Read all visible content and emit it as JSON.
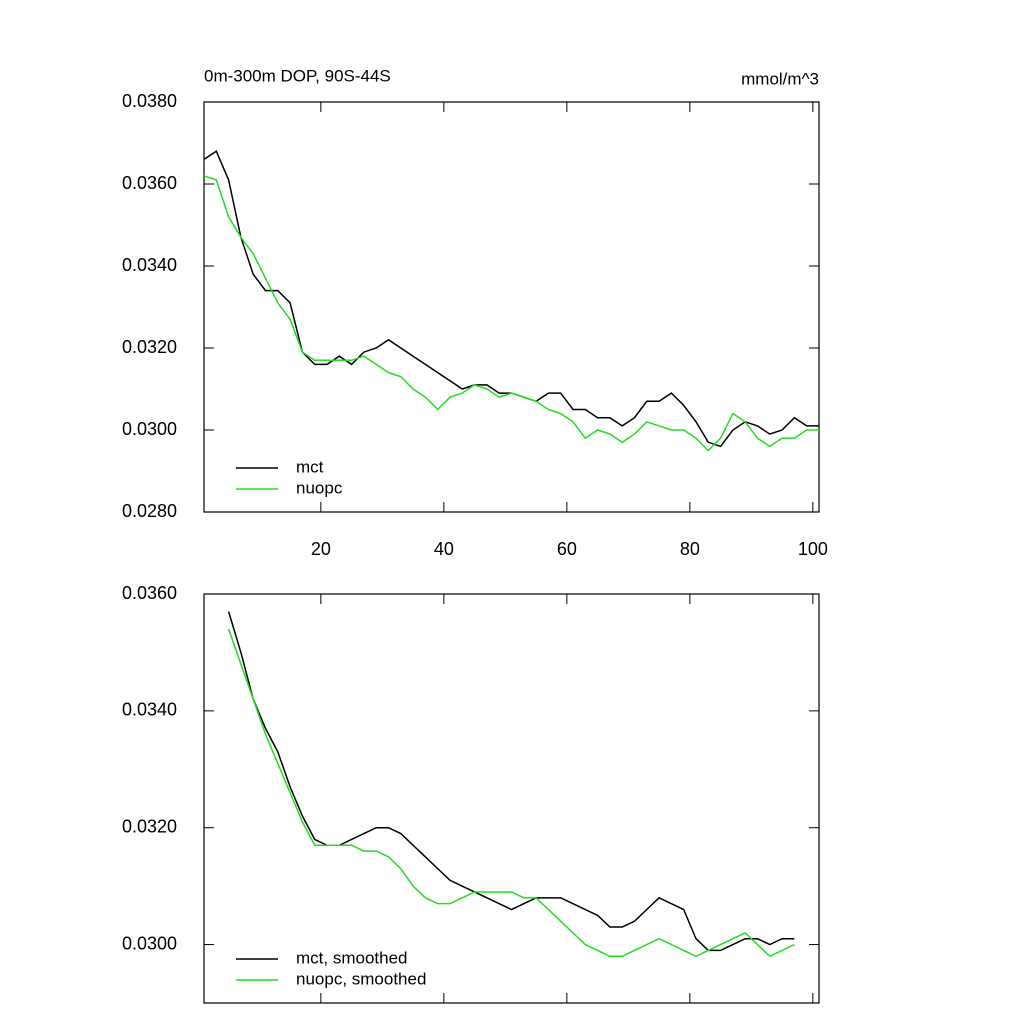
{
  "chart_data": [
    {
      "type": "line",
      "title": "0m-300m DOP, 90S-44S",
      "units": "mmol/m^3",
      "x": [
        1,
        3,
        5,
        7,
        9,
        11,
        13,
        15,
        17,
        19,
        21,
        23,
        25,
        27,
        29,
        31,
        33,
        35,
        37,
        39,
        41,
        43,
        45,
        47,
        49,
        51,
        53,
        55,
        57,
        59,
        61,
        63,
        65,
        67,
        69,
        71,
        73,
        75,
        77,
        79,
        81,
        83,
        85,
        87,
        89,
        91,
        93,
        95,
        97,
        99,
        101
      ],
      "series": [
        {
          "name": "mct",
          "color": "#000000",
          "values": [
            0.0366,
            0.0368,
            0.0361,
            0.0347,
            0.0338,
            0.0334,
            0.0334,
            0.0331,
            0.0319,
            0.0316,
            0.0316,
            0.0318,
            0.0316,
            0.0319,
            0.032,
            0.0322,
            0.032,
            0.0318,
            0.0316,
            0.0314,
            0.0312,
            0.031,
            0.0311,
            0.0311,
            0.0309,
            0.0309,
            0.0308,
            0.0307,
            0.0309,
            0.0309,
            0.0305,
            0.0305,
            0.0303,
            0.0303,
            0.0301,
            0.0303,
            0.0307,
            0.0307,
            0.0309,
            0.0306,
            0.0302,
            0.0297,
            0.0296,
            0.03,
            0.0302,
            0.0301,
            0.0299,
            0.03,
            0.0303,
            0.0301,
            0.0301
          ]
        },
        {
          "name": "nuopc",
          "color": "#22dd22",
          "values": [
            0.0362,
            0.0361,
            0.0352,
            0.0347,
            0.0343,
            0.0337,
            0.0331,
            0.0327,
            0.0319,
            0.0317,
            0.0317,
            0.0317,
            0.0317,
            0.0318,
            0.0316,
            0.0314,
            0.0313,
            0.031,
            0.0308,
            0.0305,
            0.0308,
            0.0309,
            0.0311,
            0.031,
            0.0308,
            0.0309,
            0.0308,
            0.0307,
            0.0305,
            0.0304,
            0.0302,
            0.0298,
            0.03,
            0.0299,
            0.0297,
            0.0299,
            0.0302,
            0.0301,
            0.03,
            0.03,
            0.0298,
            0.0295,
            0.0298,
            0.0304,
            0.0302,
            0.0298,
            0.0296,
            0.0298,
            0.0298,
            0.03,
            0.03
          ]
        }
      ],
      "xlim": [
        1,
        101
      ],
      "xticks": [
        20,
        40,
        60,
        80,
        100
      ],
      "ylim": [
        0.028,
        0.038
      ],
      "yticks": [
        {
          "value": 0.028,
          "label": "0.0280"
        },
        {
          "value": 0.03,
          "label": "0.0300"
        },
        {
          "value": 0.032,
          "label": "0.0320"
        },
        {
          "value": 0.034,
          "label": "0.0340"
        },
        {
          "value": 0.036,
          "label": "0.0360"
        },
        {
          "value": 0.038,
          "label": "0.0380"
        }
      ],
      "legend": "lower left"
    },
    {
      "type": "line",
      "x": [
        5,
        7,
        9,
        11,
        13,
        15,
        17,
        19,
        21,
        23,
        25,
        27,
        29,
        31,
        33,
        35,
        37,
        39,
        41,
        43,
        45,
        47,
        49,
        51,
        53,
        55,
        57,
        59,
        61,
        63,
        65,
        67,
        69,
        71,
        73,
        75,
        77,
        79,
        81,
        83,
        85,
        87,
        89,
        91,
        93,
        95,
        97
      ],
      "series": [
        {
          "name": "mct, smoothed",
          "color": "#000000",
          "values": [
            0.0357,
            0.035,
            0.0342,
            0.0337,
            0.0333,
            0.0327,
            0.0322,
            0.0318,
            0.0317,
            0.0317,
            0.0318,
            0.0319,
            0.032,
            0.032,
            0.0319,
            0.0317,
            0.0315,
            0.0313,
            0.0311,
            0.031,
            0.0309,
            0.0308,
            0.0307,
            0.0306,
            0.0307,
            0.0308,
            0.0308,
            0.0308,
            0.0307,
            0.0306,
            0.0305,
            0.0303,
            0.0303,
            0.0304,
            0.0306,
            0.0308,
            0.0307,
            0.0306,
            0.0301,
            0.0299,
            0.0299,
            0.03,
            0.0301,
            0.0301,
            0.03,
            0.0301,
            0.0301
          ]
        },
        {
          "name": "nuopc, smoothed",
          "color": "#22dd22",
          "values": [
            0.0354,
            0.0348,
            0.0342,
            0.0336,
            0.0331,
            0.0326,
            0.0321,
            0.0317,
            0.0317,
            0.0317,
            0.0317,
            0.0316,
            0.0316,
            0.0315,
            0.0313,
            0.031,
            0.0308,
            0.0307,
            0.0307,
            0.0308,
            0.0309,
            0.0309,
            0.0309,
            0.0309,
            0.0308,
            0.0308,
            0.0306,
            0.0304,
            0.0302,
            0.03,
            0.0299,
            0.0298,
            0.0298,
            0.0299,
            0.03,
            0.0301,
            0.03,
            0.0299,
            0.0298,
            0.0299,
            0.03,
            0.0301,
            0.0302,
            0.03,
            0.0298,
            0.0299,
            0.03
          ]
        }
      ],
      "xlim": [
        1,
        101
      ],
      "xticks": [
        20,
        40,
        60,
        80,
        100
      ],
      "ylim": [
        0.029,
        0.036
      ],
      "yticks": [
        {
          "value": 0.03,
          "label": "0.0300"
        },
        {
          "value": 0.032,
          "label": "0.0320"
        },
        {
          "value": 0.034,
          "label": "0.0340"
        },
        {
          "value": 0.036,
          "label": "0.0360"
        }
      ],
      "legend": "lower left"
    }
  ]
}
